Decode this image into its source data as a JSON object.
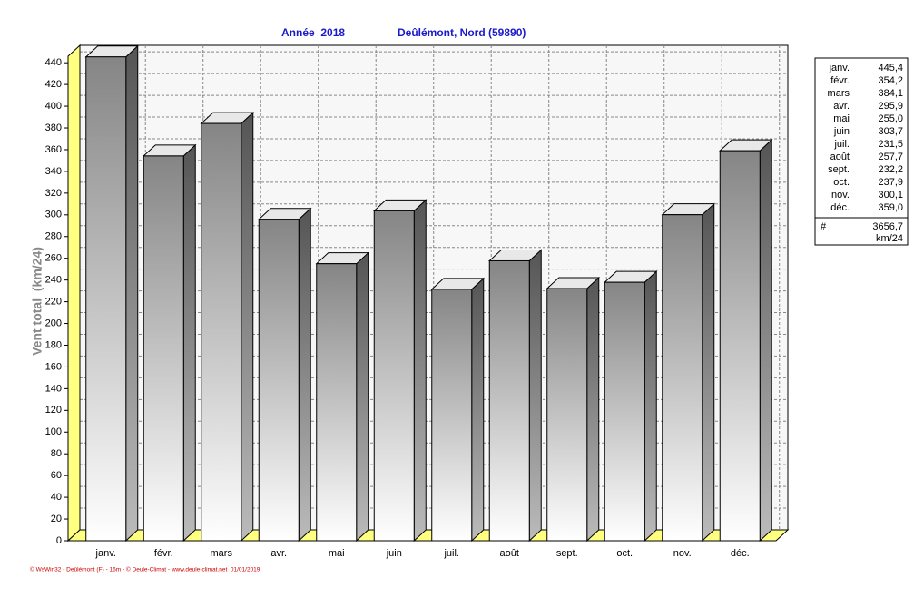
{
  "chart_data": {
    "type": "bar",
    "title": "Année  2018",
    "subtitle": "Deûlémont, Nord (59890)",
    "y_label": "Vent total  (km/24)",
    "footer": "© WsWin32 - Deûlémont (F) - 16m - © Deule-Climat - www.deule-climat.net  01/01/2019",
    "categories": [
      "janv.",
      "févr.",
      "mars",
      "avr.",
      "mai",
      "juin",
      "juil.",
      "août",
      "sept.",
      "oct.",
      "nov.",
      "déc."
    ],
    "values": [
      445.4,
      354.2,
      384.1,
      295.9,
      255.0,
      303.7,
      231.5,
      257.7,
      232.2,
      237.9,
      300.1,
      359.0
    ],
    "value_labels": [
      "445,4",
      "354,2",
      "384,1",
      "295,9",
      "255,0",
      "303,7",
      "231,5",
      "257,7",
      "232,2",
      "237,9",
      "300,1",
      "359,0"
    ],
    "total": {
      "symbol": "#",
      "value": 3656.7,
      "label": "3656,7",
      "unit": "km/24"
    },
    "ylim": [
      0,
      446
    ],
    "yticks": [
      0,
      20,
      40,
      60,
      80,
      100,
      120,
      140,
      160,
      180,
      200,
      220,
      240,
      260,
      280,
      300,
      320,
      340,
      360,
      380,
      400,
      420,
      440
    ],
    "grid": true
  }
}
